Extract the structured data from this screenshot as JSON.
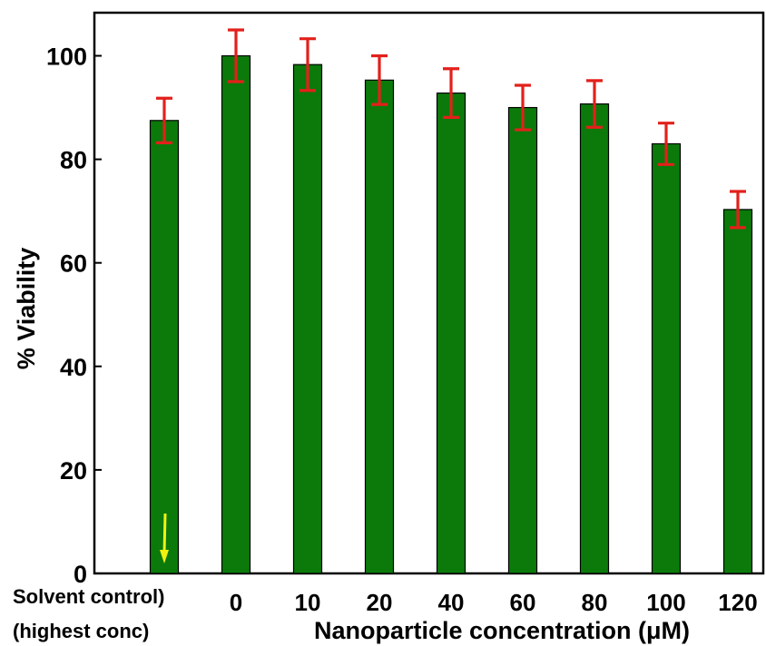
{
  "chart_data": {
    "type": "bar",
    "ylabel": "% Viability",
    "xlabel": "Nanoparticle concentration (μM)",
    "categories": [
      "Solvent control)",
      "0",
      "10",
      "20",
      "40",
      "60",
      "80",
      "100",
      "120"
    ],
    "control_sublabel": "(highest conc)",
    "values": [
      87.5,
      100,
      98.3,
      95.3,
      92.8,
      90.0,
      90.7,
      83.0,
      70.3
    ],
    "errors": [
      4.3,
      5.0,
      5.0,
      4.7,
      4.7,
      4.3,
      4.5,
      4.0,
      3.5
    ],
    "ylim": [
      0,
      108
    ],
    "yticks": [
      0,
      20,
      40,
      60,
      80,
      100
    ],
    "colors": {
      "bar": "#0b7a0b",
      "bar_edge": "#000000",
      "error": "#e3201b",
      "arrow": "#f2f20f"
    },
    "grid": false
  }
}
